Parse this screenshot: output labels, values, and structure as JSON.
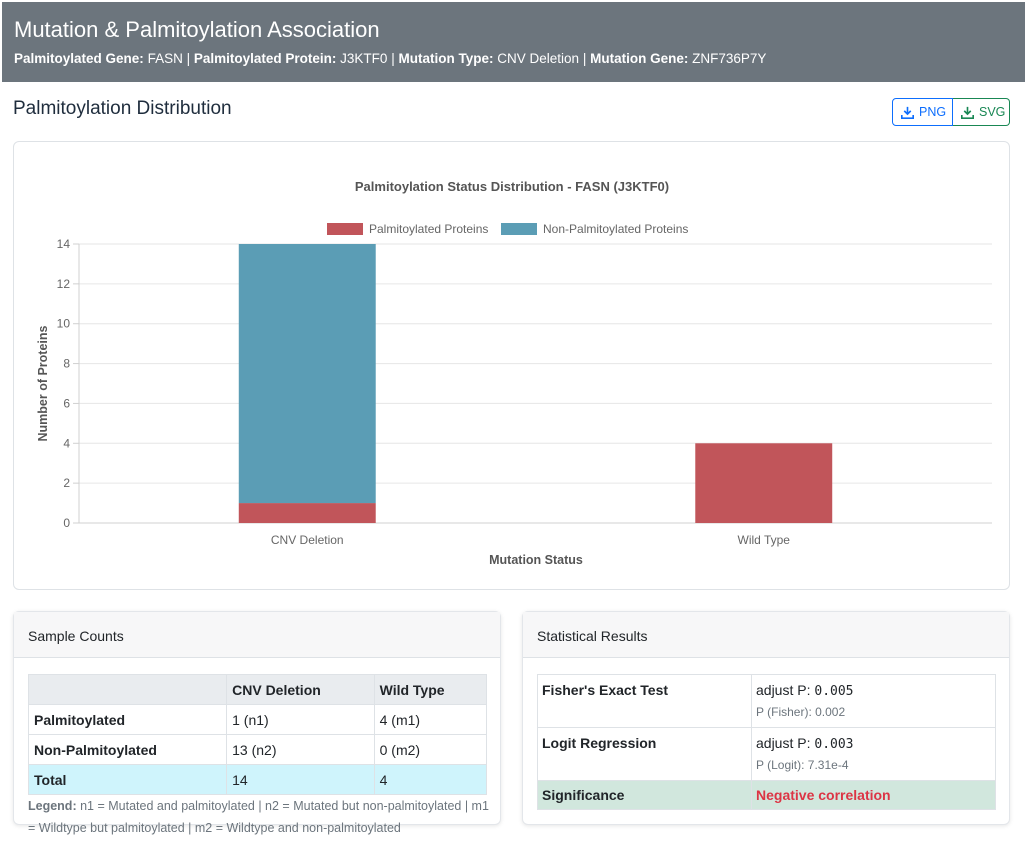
{
  "header": {
    "title": "Mutation & Palmitoylation Association",
    "gene_label": "Palmitoylated Gene:",
    "gene_value": "FASN",
    "protein_label": "Palmitoylated Protein:",
    "protein_value": "J3KTF0",
    "mut_type_label": "Mutation Type:",
    "mut_type_value": "CNV Deletion",
    "mut_gene_label": "Mutation Gene:",
    "mut_gene_value": "ZNF736P7Y",
    "separator": "|"
  },
  "section": {
    "title": "Palmitoylation Distribution"
  },
  "export": {
    "png_label": "PNG",
    "svg_label": "SVG",
    "png_icon": "download-icon",
    "svg_icon": "download-icon"
  },
  "chart_data": {
    "type": "bar",
    "stacked": true,
    "title": "Palmitoylation Status Distribution - FASN (J3KTF0)",
    "xlabel": "Mutation Status",
    "ylabel": "Number of Proteins",
    "categories": [
      "CNV Deletion",
      "Wild Type"
    ],
    "series": [
      {
        "name": "Palmitoylated Proteins",
        "values": [
          1,
          4
        ],
        "color": "#c1555a"
      },
      {
        "name": "Non-Palmitoylated Proteins",
        "values": [
          13,
          0
        ],
        "color": "#5b9db5"
      }
    ],
    "ylim": [
      0,
      14
    ],
    "yticks": [
      0,
      2,
      4,
      6,
      8,
      10,
      12,
      14
    ],
    "grid": true,
    "legend_position": "top"
  },
  "sample_counts": {
    "title": "Sample Counts",
    "columns": [
      "",
      "CNV Deletion",
      "Wild Type"
    ],
    "rows": [
      {
        "label": "Palmitoylated",
        "cnv": "1 (n1)",
        "wt": "4 (m1)"
      },
      {
        "label": "Non-Palmitoylated",
        "cnv": "13 (n2)",
        "wt": "0 (m2)"
      }
    ],
    "total": {
      "label": "Total",
      "cnv": "14",
      "wt": "4"
    },
    "legend_label": "Legend:",
    "legend_text": "n1 = Mutated and palmitoylated | n2 = Mutated but non-palmitoylated | m1 = Wildtype but palmitoylated | m2 = Wildtype and non-palmitoylated"
  },
  "stats": {
    "title": "Statistical Results",
    "fisher": {
      "label": "Fisher's Exact Test",
      "adj_label": "adjust P:",
      "adj_value": "0.005",
      "p_text": "P (Fisher): 0.002"
    },
    "logit": {
      "label": "Logit Regression",
      "adj_label": "adjust P:",
      "adj_value": "0.003",
      "p_text": "P (Logit): 7.31e-4"
    },
    "significance": {
      "label": "Significance",
      "value": "Negative correlation"
    }
  }
}
